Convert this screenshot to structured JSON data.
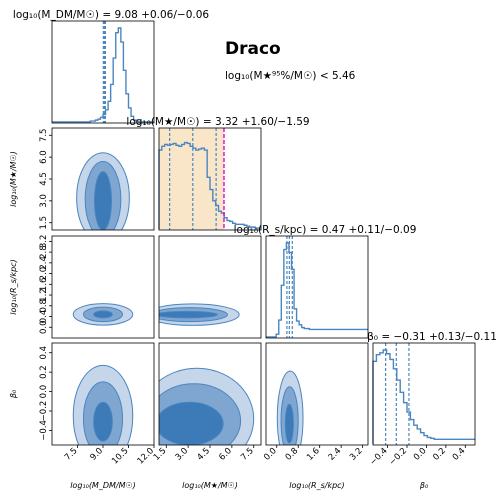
{
  "title": "Draco",
  "subtitle": "log₁₀(M★⁹⁵%/M☉) < 5.46",
  "colors": {
    "hist": "#4a86c0",
    "contour_dark": "#3c7ab8",
    "contour_mid": "#7ea6d1",
    "contour_light": "#c5d6ea",
    "prior_band": "#f9e6c8",
    "limit_line": "#e000e0"
  },
  "chart_data": {
    "type": "corner",
    "parameters": [
      {
        "id": "mdm",
        "axis_label": "log₁₀(M_DM/M☉)",
        "marginal_title": "log₁₀(M_DM/M☉) = 9.08 +0.06/−0.06",
        "median": 9.08,
        "err_plus": 0.06,
        "err_minus": 0.06,
        "range": [
          6.0,
          12.0
        ],
        "ticks": [
          7.5,
          9.0,
          10.5,
          12.0
        ],
        "quantile_lines": [
          9.02,
          9.08,
          9.14
        ],
        "hist": [
          0,
          0,
          0,
          0,
          0,
          0,
          0,
          0,
          0,
          0,
          0,
          0,
          0,
          0,
          0,
          0.01,
          0.01,
          0.02,
          0.03,
          0.05,
          0.08,
          0.13,
          0.22,
          0.4,
          0.68,
          0.95,
          1.0,
          0.85,
          0.55,
          0.3,
          0.15,
          0.06,
          0.02,
          0.01,
          0,
          0,
          0,
          0,
          0,
          0
        ]
      },
      {
        "id": "mstar",
        "axis_label": "log₁₀(M★/M☉)",
        "marginal_title": "log₁₀(M★/M☉) = 3.32 +1.60/−1.59",
        "median": 3.32,
        "err_plus": 1.6,
        "err_minus": 1.59,
        "range": [
          1.0,
          8.0
        ],
        "ticks": [
          1.5,
          3.0,
          4.5,
          6.0,
          7.5
        ],
        "ticks_y": [
          1.5,
          3.0,
          4.5,
          6.0,
          7.5
        ],
        "quantile_lines": [
          1.73,
          3.32,
          4.92
        ],
        "upper_limit": 5.46,
        "prior_band": [
          1.0,
          5.46
        ],
        "hist": [
          0.84,
          0.88,
          0.9,
          0.89,
          0.9,
          0.91,
          0.89,
          0.88,
          0.9,
          0.92,
          0.91,
          0.88,
          0.86,
          0.84,
          0.85,
          0.86,
          0.84,
          0.55,
          0.42,
          0.3,
          0.25,
          0.19,
          0.17,
          0.12,
          0.09,
          0.08,
          0.06,
          0.05,
          0.05,
          0.05,
          0.04,
          0.03,
          0.02,
          0.02,
          0.01,
          0.01
        ]
      },
      {
        "id": "rs",
        "axis_label": "log₁₀(R_s/kpc)",
        "marginal_title": "log₁₀(R_s/kpc) = 0.47 +0.11/−0.09",
        "median": 0.47,
        "err_plus": 0.11,
        "err_minus": 0.09,
        "range": [
          -0.4,
          3.4
        ],
        "ticks": [
          0.0,
          0.8,
          1.6,
          2.4,
          3.2
        ],
        "ticks_y": [
          0.0,
          0.4,
          0.8,
          1.2,
          1.6,
          2.0,
          2.4,
          2.8,
          3.2
        ],
        "quantile_lines": [
          0.38,
          0.47,
          0.58
        ],
        "hist": [
          0,
          0,
          0,
          0,
          0.03,
          0.18,
          0.55,
          0.93,
          1.0,
          0.9,
          0.72,
          0.3,
          0.17,
          0.13,
          0.1,
          0.09,
          0.09,
          0.08,
          0.08,
          0.08,
          0.08,
          0.08,
          0.08,
          0.08,
          0.08,
          0.08,
          0.08,
          0.08,
          0.08,
          0.08,
          0.08,
          0.08,
          0.08,
          0.08,
          0.08,
          0.08,
          0.08,
          0.08,
          0.08,
          0.08
        ]
      },
      {
        "id": "beta",
        "axis_label": "β₀",
        "marginal_title": "β₀ = −0.31 +0.13/−0.11",
        "median": -0.31,
        "err_plus": 0.13,
        "err_minus": 0.11,
        "range": [
          -0.55,
          0.5
        ],
        "ticks": [
          -0.4,
          -0.2,
          0.0,
          0.2,
          0.4
        ],
        "ticks_y": [
          -0.4,
          -0.2,
          0.0,
          0.2,
          0.4
        ],
        "quantile_lines": [
          -0.42,
          -0.31,
          -0.18
        ],
        "hist": [
          0.88,
          0.95,
          0.97,
          1.0,
          0.96,
          0.9,
          0.8,
          0.68,
          0.55,
          0.44,
          0.34,
          0.26,
          0.2,
          0.16,
          0.12,
          0.09,
          0.07,
          0.06,
          0.05,
          0.05,
          0.05,
          0.05,
          0.05,
          0.05,
          0.05,
          0.05,
          0.05,
          0.05,
          0.05,
          0.05
        ]
      }
    ],
    "contours": [
      {
        "row": 1,
        "col": 0,
        "levels": [
          {
            "cx": 9.0,
            "cy": 3.2,
            "rx": 1.55,
            "ry": 3.1
          },
          {
            "cx": 9.0,
            "cy": 3.1,
            "rx": 1.05,
            "ry": 2.6
          },
          {
            "cx": 9.0,
            "cy": 3.0,
            "rx": 0.5,
            "ry": 2.0
          }
        ]
      },
      {
        "row": 2,
        "col": 0,
        "levels": [
          {
            "cx": 9.0,
            "cy": 0.48,
            "rx": 1.75,
            "ry": 0.4
          },
          {
            "cx": 9.0,
            "cy": 0.48,
            "rx": 1.15,
            "ry": 0.27
          },
          {
            "cx": 9.0,
            "cy": 0.48,
            "rx": 0.55,
            "ry": 0.13
          }
        ]
      },
      {
        "row": 2,
        "col": 1,
        "levels": [
          {
            "cx": 3.3,
            "cy": 0.47,
            "rx": 3.2,
            "ry": 0.4
          },
          {
            "cx": 3.1,
            "cy": 0.47,
            "rx": 2.6,
            "ry": 0.26
          },
          {
            "cx": 2.9,
            "cy": 0.47,
            "rx": 2.1,
            "ry": 0.12
          }
        ]
      },
      {
        "row": 3,
        "col": 0,
        "levels": [
          {
            "cx": 9.0,
            "cy": -0.25,
            "rx": 1.75,
            "ry": 0.52
          },
          {
            "cx": 9.0,
            "cy": -0.28,
            "rx": 1.15,
            "ry": 0.38
          },
          {
            "cx": 9.0,
            "cy": -0.31,
            "rx": 0.55,
            "ry": 0.2
          }
        ]
      },
      {
        "row": 3,
        "col": 1,
        "levels": [
          {
            "cx": 3.6,
            "cy": -0.28,
            "rx": 3.9,
            "ry": 0.52
          },
          {
            "cx": 3.4,
            "cy": -0.3,
            "rx": 3.2,
            "ry": 0.38
          },
          {
            "cx": 3.1,
            "cy": -0.33,
            "rx": 2.3,
            "ry": 0.22
          }
        ]
      },
      {
        "row": 3,
        "col": 2,
        "levels": [
          {
            "cx": 0.5,
            "cy": -0.27,
            "rx": 0.48,
            "ry": 0.48
          },
          {
            "cx": 0.48,
            "cy": -0.3,
            "rx": 0.32,
            "ry": 0.35
          },
          {
            "cx": 0.47,
            "cy": -0.33,
            "rx": 0.15,
            "ry": 0.2
          }
        ]
      }
    ]
  }
}
